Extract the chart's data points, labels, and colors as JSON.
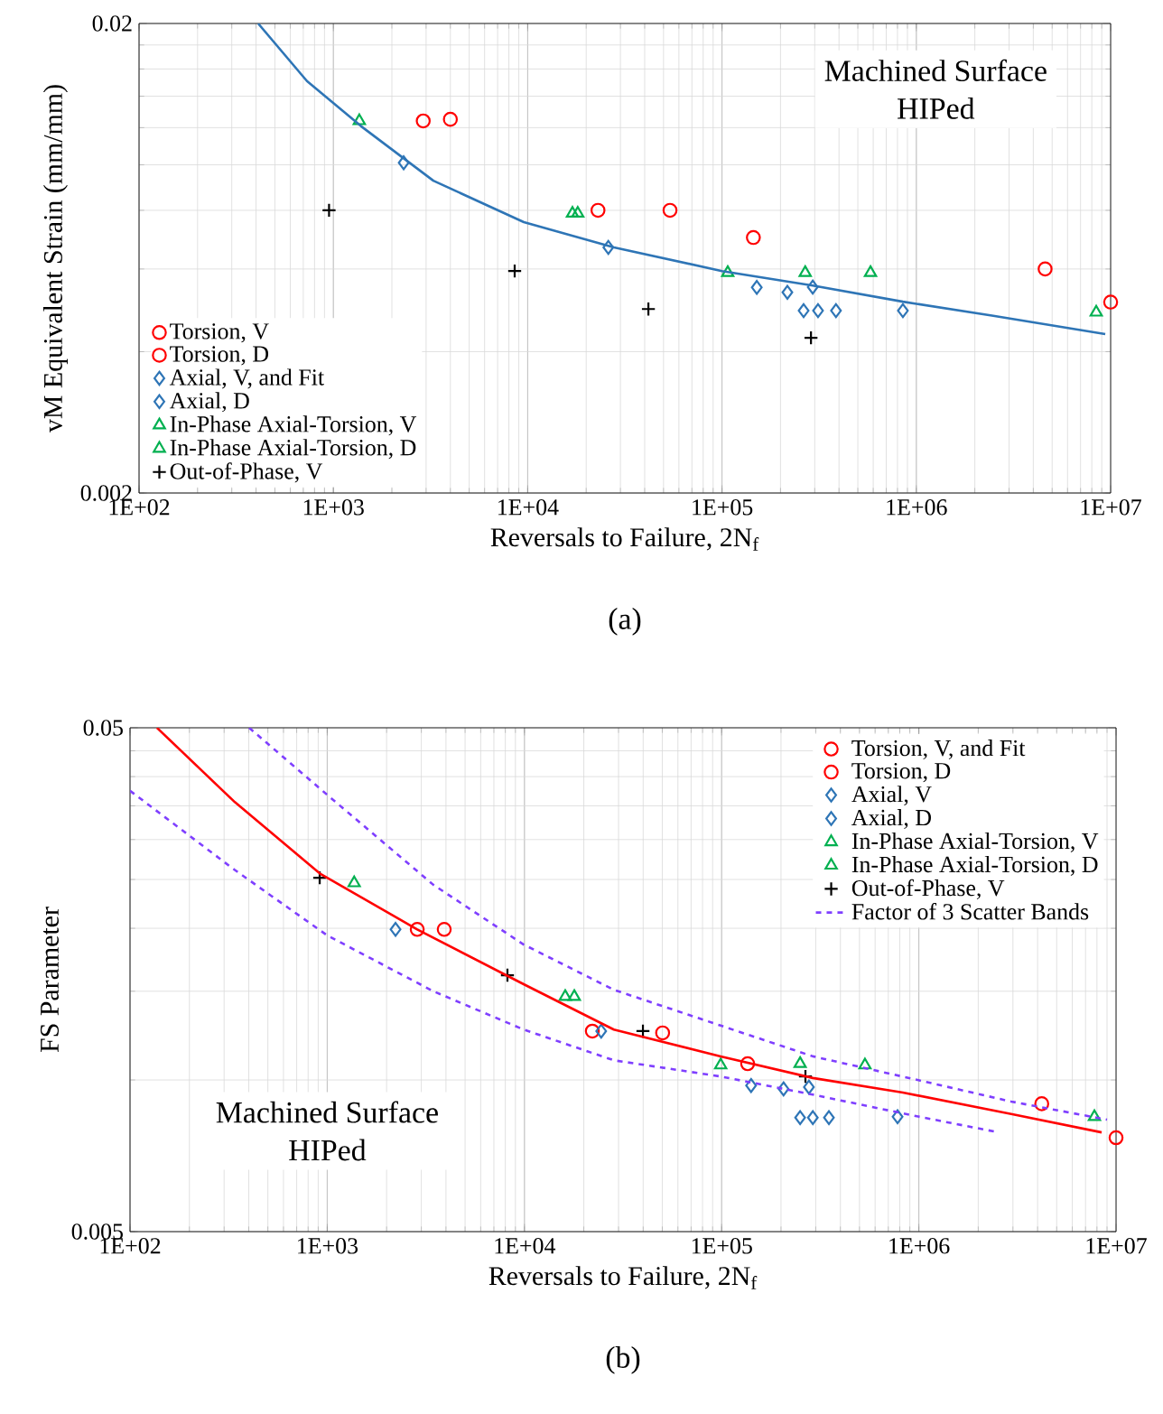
{
  "chart_data": [
    {
      "type": "scatter",
      "xlabel": "Reversals to Failure, 2N$_{f}$",
      "ylabel": "vM Equivalent Strain (mm/mm)",
      "annotations": [
        "Machined Surface",
        "HIPed",
        "(a)"
      ],
      "xlim": [
        100,
        10000000
      ],
      "ylim": [
        0.002,
        0.02
      ],
      "xticks": [
        {
          "value": 100,
          "label": "1E+02"
        },
        {
          "value": 1000,
          "label": "1E+03"
        },
        {
          "value": 10000,
          "label": "1E+04"
        },
        {
          "value": 100000,
          "label": "1E+05"
        },
        {
          "value": 1000000,
          "label": "1E+06"
        },
        {
          "value": 10000000,
          "label": "1E+07"
        }
      ],
      "yticks": [
        0.002,
        0.02
      ],
      "log": "xy",
      "grid": true,
      "legend": "bottom left",
      "series": [
        {
          "name": "Torsion, V",
          "color": "#ff0000",
          "marker": "circle",
          "x": [
            2900,
            23000,
            10000000
          ],
          "values": [
            0.0124,
            0.008,
            0.0051
          ]
        },
        {
          "name": "Torsion, D",
          "color": "#ff0000",
          "marker": "circle",
          "x": [
            4000,
            54000,
            145000,
            4600000
          ],
          "values": [
            0.0125,
            0.008,
            0.007,
            0.006
          ]
        },
        {
          "name": "Axial, V, and Fit",
          "color": "#2e75b6",
          "marker": "diamond",
          "x": [
            217000,
            293000,
            263000,
            312000,
            386000,
            853000
          ],
          "values": [
            0.00535,
            0.00549,
            0.00489,
            0.00489,
            0.00489,
            0.00489
          ]
        },
        {
          "name": "Axial, D",
          "color": "#2e75b6",
          "marker": "diamond",
          "x": [
            2300,
            26000,
            151000
          ],
          "values": [
            0.0101,
            0.00667,
            0.00548
          ]
        },
        {
          "name": "In-Phase Axial-Torsion, V",
          "color": "#00b050",
          "marker": "triangle",
          "x": [
            1360,
            107000,
            268000,
            8430000
          ],
          "values": [
            0.0124,
            0.00589,
            0.00589,
            0.00485
          ]
        },
        {
          "name": "In-Phase Axial-Torsion, D",
          "color": "#00b050",
          "marker": "triangle",
          "x": [
            17000,
            18100,
            581000
          ],
          "values": [
            0.00788,
            0.00788,
            0.00589
          ]
        },
        {
          "name": "Out-of-Phase, V",
          "color": "#000000",
          "marker": "cross",
          "x": [
            950,
            8570,
            41800,
            287000
          ],
          "values": [
            0.008,
            0.00594,
            0.00493,
            0.00428
          ]
        },
        {
          "type": "line",
          "color": "#2e75b6",
          "line_style": "solid",
          "x": [
            410,
            731,
            1390,
            3270,
            9550,
            27800,
            100000,
            293000,
            853000,
            2490000,
            9380000
          ],
          "values": [
            0.02,
            0.01508,
            0.01208,
            0.00925,
            0.00755,
            0.00667,
            0.00594,
            0.00553,
            0.00511,
            0.00477,
            0.00436
          ]
        }
      ]
    },
    {
      "type": "scatter",
      "xlabel": "Reversals to Failure, 2N$_{f}$",
      "ylabel": "FS Parameter",
      "annotations": [
        "Machined Surface",
        "HIPed",
        "(b)"
      ],
      "xlim": [
        100,
        10000000
      ],
      "ylim": [
        0.005,
        0.05
      ],
      "xticks": [
        {
          "value": 100,
          "label": "1E+02"
        },
        {
          "value": 1000,
          "label": "1E+03"
        },
        {
          "value": 10000,
          "label": "1E+04"
        },
        {
          "value": 100000,
          "label": "1E+05"
        },
        {
          "value": 1000000,
          "label": "1E+06"
        },
        {
          "value": 10000000,
          "label": "1E+07"
        }
      ],
      "yticks": [
        0.005,
        0.05
      ],
      "log": "xy",
      "grid": true,
      "legend": "top right",
      "series": [
        {
          "name": "Torsion, V, and Fit",
          "color": "#ff0000",
          "marker": "circle",
          "x": [
            2860,
            22100,
            10000000
          ],
          "values": [
            0.0199,
            0.0125,
            0.00768
          ]
        },
        {
          "name": "Torsion, D",
          "color": "#ff0000",
          "marker": "circle",
          "x": [
            3920,
            50200,
            135500,
            4200000
          ],
          "values": [
            0.0199,
            0.0124,
            0.01077,
            0.00897
          ]
        },
        {
          "name": "Axial, V",
          "color": "#2e75b6",
          "marker": "diamond",
          "x": [
            206000,
            277000,
            250000,
            290000,
            350000,
            780000
          ],
          "values": [
            0.0096,
            0.00968,
            0.00842,
            0.00842,
            0.00842,
            0.00845
          ]
        },
        {
          "name": "Axial, D",
          "color": "#2e75b6",
          "marker": "diamond",
          "x": [
            2220,
            24500,
            141000
          ],
          "values": [
            0.0199,
            0.0125,
            0.00975
          ]
        },
        {
          "name": "In-Phase Axial-Torsion, V",
          "color": "#00b050",
          "marker": "triangle",
          "x": [
            1370,
            98900,
            250000,
            7770000
          ],
          "values": [
            0.0246,
            0.0107,
            0.01077,
            0.00845
          ]
        },
        {
          "name": "In-Phase Axial-Torsion, D",
          "color": "#00b050",
          "marker": "triangle",
          "x": [
            16100,
            17900,
            533000
          ],
          "values": [
            0.01463,
            0.01463,
            0.0107
          ]
        },
        {
          "name": "Out-of-Phase, V",
          "color": "#000000",
          "marker": "cross",
          "x": [
            916,
            8200,
            39900,
            266000
          ],
          "values": [
            0.0252,
            0.01614,
            0.0125,
            0.01016
          ]
        },
        {
          "name": "Factor of 3 Scatter Bands",
          "type": "line",
          "color": "#7f3fff",
          "line_style": "dashed",
          "x": [
            402,
            1000,
            3450,
            9910,
            28400,
            98900,
            290000,
            984000,
            2940000,
            9000000
          ],
          "values": [
            0.05,
            0.0368,
            0.0244,
            0.01857,
            0.0151,
            0.01282,
            0.01114,
            0.01,
            0.00906,
            0.00834
          ]
        },
        {
          "type": "line",
          "color": "#7f3fff",
          "line_style": "dashed",
          "x": [
            100,
            340,
            1000,
            3450,
            9910,
            28400,
            98900,
            290000,
            964000,
            2540000
          ],
          "values": [
            0.0375,
            0.0261,
            0.01936,
            0.015,
            0.01259,
            0.01094,
            0.01016,
            0.00935,
            0.00848,
            0.00787
          ]
        },
        {
          "type": "line",
          "color": "#ff0000",
          "line_style": "solid",
          "x": [
            137,
            340,
            916,
            2860,
            9910,
            28400,
            98900,
            290000,
            830000,
            2940000,
            8450000
          ],
          "values": [
            0.05,
            0.0356,
            0.0257,
            0.0199,
            0.01549,
            0.01259,
            0.01114,
            0.01009,
            0.00944,
            0.00856,
            0.00787
          ]
        }
      ]
    }
  ]
}
